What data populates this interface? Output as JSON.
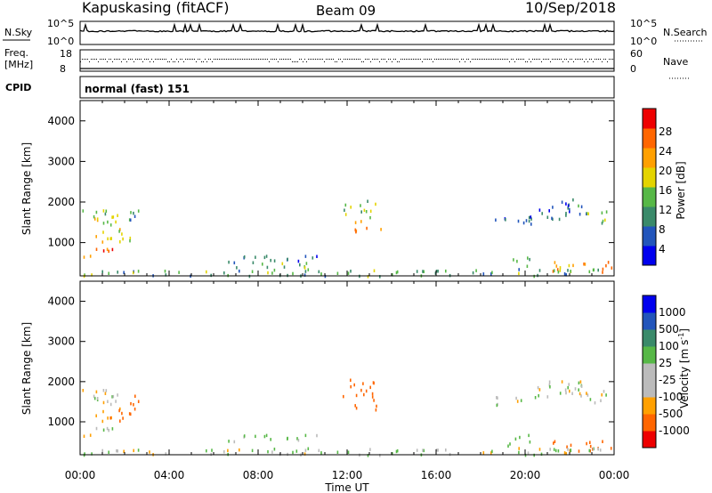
{
  "header": {
    "station": "Kapuskasing (fitACF)",
    "beam": "Beam 09",
    "date": "10/Sep/2018"
  },
  "nsky": {
    "label": "N.Sky",
    "ticks": [
      "10^5",
      "10^0"
    ],
    "right_label": "N.Search",
    "right_ticks": [
      "10^5",
      "10^0"
    ]
  },
  "freq": {
    "label_top": "Freq.",
    "label_unit": "[MHz]",
    "ticks": [
      "18",
      "8"
    ],
    "right_label": "Nave",
    "right_ticks": [
      "60",
      "0"
    ]
  },
  "cpid": {
    "label": "CPID",
    "text": "normal (fast) 151"
  },
  "colors": {
    "power": [
      "#0000ee",
      "#2255bb",
      "#3a8a6a",
      "#57b847",
      "#e4d400",
      "#ffa000",
      "#ff6600",
      "#ee0000"
    ],
    "velocity": [
      "#ee0000",
      "#ff6600",
      "#ffa000",
      "#bbbbbb",
      "#bbbbbb",
      "#57b847",
      "#3a8a6a",
      "#2255bb",
      "#0000ee"
    ]
  },
  "chart_data": [
    {
      "type": "heatmap",
      "name": "power",
      "ylabel": "Slant Range [km]",
      "xlabel": "Time UT",
      "ylim": [
        180,
        4500
      ],
      "xlim": [
        0,
        24
      ],
      "x_ticks": [
        "00:00",
        "04:00",
        "08:00",
        "12:00",
        "16:00",
        "20:00",
        "00:00"
      ],
      "y_ticks": [
        "1000",
        "2000",
        "3000",
        "4000"
      ],
      "colorbar": {
        "label": "Power [dB]",
        "ticks": [
          "4",
          "8",
          "12",
          "16",
          "20",
          "24",
          "28"
        ],
        "range": [
          0,
          30
        ]
      },
      "regions": [
        {
          "t": [
            0.1,
            1.9
          ],
          "r": [
            1450,
            1850
          ],
          "v": 16
        },
        {
          "t": [
            0.1,
            1.9
          ],
          "r": [
            1050,
            1400
          ],
          "v": 20
        },
        {
          "t": [
            0.1,
            1.6
          ],
          "r": [
            650,
            900
          ],
          "v": 26
        },
        {
          "t": [
            1.9,
            2.6
          ],
          "r": [
            1500,
            2000
          ],
          "v": 10
        },
        {
          "t": [
            1.6,
            2.4
          ],
          "r": [
            900,
            1200
          ],
          "v": 12
        },
        {
          "t": [
            6.3,
            10.8
          ],
          "r": [
            500,
            700
          ],
          "v": 8
        },
        {
          "t": [
            7.0,
            10.5
          ],
          "r": [
            400,
            550
          ],
          "v": 14
        },
        {
          "t": [
            11.8,
            13.3
          ],
          "r": [
            1600,
            2100
          ],
          "v": 14
        },
        {
          "t": [
            12.3,
            13.5
          ],
          "r": [
            1300,
            1600
          ],
          "v": 22
        },
        {
          "t": [
            18.6,
            20.5
          ],
          "r": [
            1450,
            1700
          ],
          "v": 6
        },
        {
          "t": [
            20.5,
            22.8
          ],
          "r": [
            1600,
            2100
          ],
          "v": 8
        },
        {
          "t": [
            22.8,
            23.8
          ],
          "r": [
            1500,
            1800
          ],
          "v": 16
        },
        {
          "t": [
            21.2,
            23.9
          ],
          "r": [
            300,
            550
          ],
          "v": 24
        },
        {
          "t": [
            19.2,
            20.2
          ],
          "r": [
            400,
            700
          ],
          "v": 14
        },
        {
          "t": [
            0,
            24
          ],
          "r": [
            200,
            380
          ],
          "v": 12
        }
      ]
    },
    {
      "type": "heatmap",
      "name": "velocity",
      "ylabel": "Slant Range [km]",
      "xlabel": "Time UT",
      "ylim": [
        180,
        4500
      ],
      "xlim": [
        0,
        24
      ],
      "x_ticks": [
        "00:00",
        "04:00",
        "08:00",
        "12:00",
        "16:00",
        "20:00",
        "00:00"
      ],
      "y_ticks": [
        "1000",
        "2000",
        "3000",
        "4000"
      ],
      "colorbar": {
        "label": "Velocity [m s^-1]",
        "ticks": [
          "1000",
          "500",
          "100",
          "25",
          "-25",
          "-100",
          "-500",
          "-1000"
        ]
      },
      "regions": [
        {
          "t": [
            0.1,
            1.9
          ],
          "r": [
            1450,
            1850
          ],
          "v": 0
        },
        {
          "t": [
            0.1,
            1.9
          ],
          "r": [
            1050,
            1400
          ],
          "v": -80
        },
        {
          "t": [
            0.1,
            1.6
          ],
          "r": [
            650,
            900
          ],
          "v": 10
        },
        {
          "t": [
            1.9,
            2.6
          ],
          "r": [
            1100,
            1800
          ],
          "v": -200
        },
        {
          "t": [
            6.3,
            10.8
          ],
          "r": [
            500,
            700
          ],
          "v": 50
        },
        {
          "t": [
            11.8,
            13.3
          ],
          "r": [
            1600,
            2100
          ],
          "v": -200
        },
        {
          "t": [
            12.3,
            13.5
          ],
          "r": [
            1300,
            1600
          ],
          "v": -300
        },
        {
          "t": [
            18.6,
            20.5
          ],
          "r": [
            1450,
            1700
          ],
          "v": 0
        },
        {
          "t": [
            20.5,
            22.8
          ],
          "r": [
            1600,
            2100
          ],
          "v": 0
        },
        {
          "t": [
            22.8,
            23.8
          ],
          "r": [
            1500,
            1800
          ],
          "v": 0
        },
        {
          "t": [
            21.2,
            23.9
          ],
          "r": [
            300,
            550
          ],
          "v": -400
        },
        {
          "t": [
            19.2,
            20.2
          ],
          "r": [
            400,
            700
          ],
          "v": 60
        },
        {
          "t": [
            0,
            24
          ],
          "r": [
            200,
            380
          ],
          "v": 20
        }
      ]
    }
  ]
}
